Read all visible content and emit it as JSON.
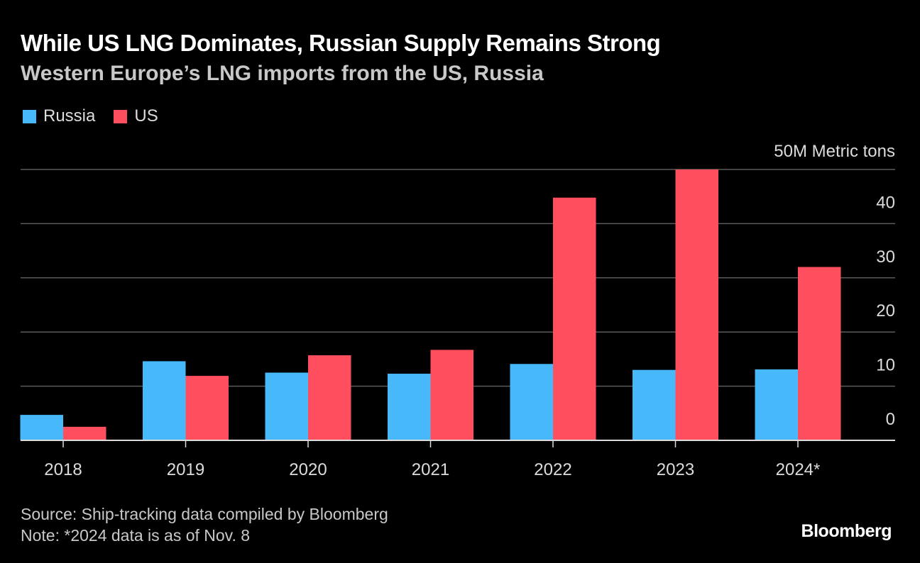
{
  "title": "While US LNG Dominates, Russian Supply Remains Strong",
  "subtitle": "Western Europe’s LNG imports from the US, Russia",
  "legend": [
    {
      "label": "Russia",
      "color": "#47b8f9"
    },
    {
      "label": "US",
      "color": "#ff4f5e"
    }
  ],
  "footer": {
    "source": "Source: Ship-tracking data compiled by Bloomberg",
    "note": "Note: *2024 data is as of Nov. 8"
  },
  "brand": "Bloomberg",
  "chart_data": {
    "type": "bar",
    "categories": [
      "2018",
      "2019",
      "2020",
      "2021",
      "2022",
      "2023",
      "2024*"
    ],
    "series": [
      {
        "name": "Russia",
        "color": "#47b8f9",
        "values": [
          4.7,
          14.6,
          12.5,
          12.3,
          14.1,
          13.0,
          13.1
        ]
      },
      {
        "name": "US",
        "color": "#ff4f5e",
        "values": [
          2.5,
          11.9,
          15.7,
          16.7,
          44.8,
          50.0,
          32.0
        ]
      }
    ],
    "ylim": [
      0,
      50
    ],
    "yticks": [
      {
        "value": 0,
        "label": "0"
      },
      {
        "value": 10,
        "label": "10"
      },
      {
        "value": 20,
        "label": "20"
      },
      {
        "value": 30,
        "label": "30"
      },
      {
        "value": 40,
        "label": "40"
      },
      {
        "value": 50,
        "label": "50M Metric tons"
      }
    ],
    "xlabel": "",
    "ylabel": "",
    "grid": true
  }
}
